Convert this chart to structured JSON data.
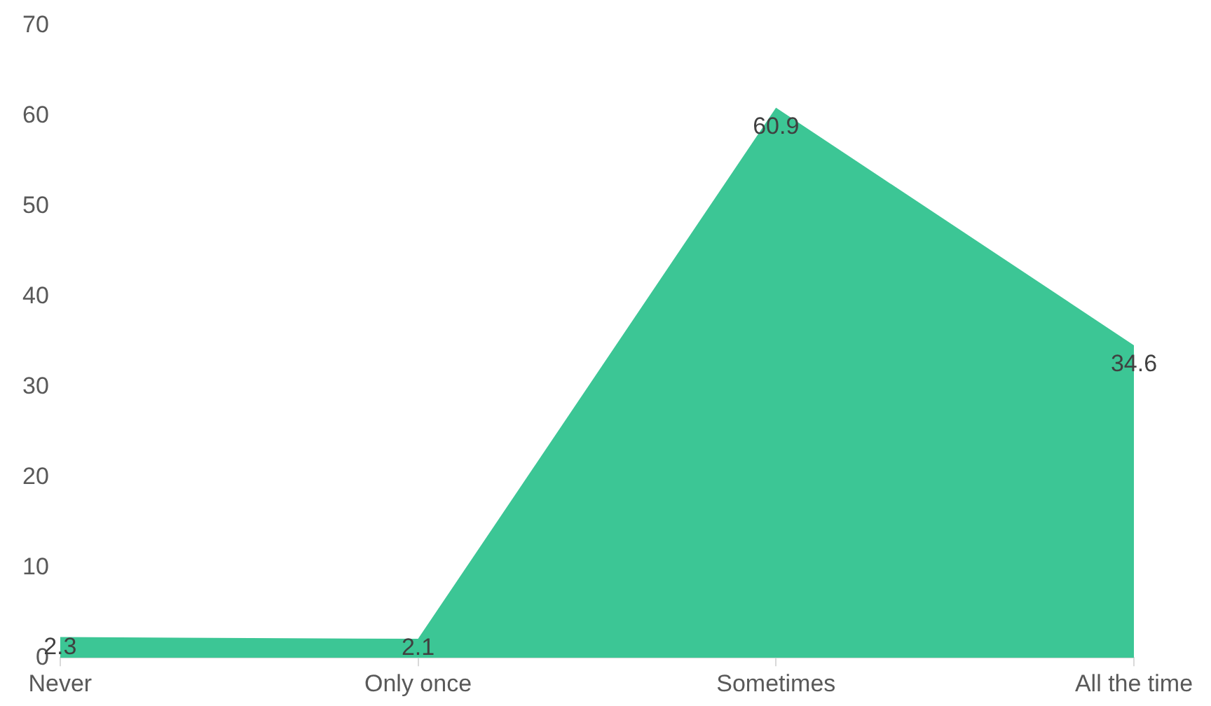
{
  "chart_data": {
    "type": "area",
    "categories": [
      "Never",
      "Only once",
      "Sometimes",
      "All the time"
    ],
    "series": [
      {
        "color": "#3cc695",
        "values": [
          2.3,
          2.1,
          60.9,
          34.6
        ]
      }
    ],
    "ylim": [
      0,
      70
    ],
    "yticks": [
      0,
      10,
      20,
      30,
      40,
      50,
      60,
      70
    ],
    "grid": false,
    "legend": false,
    "data_labels": true
  }
}
